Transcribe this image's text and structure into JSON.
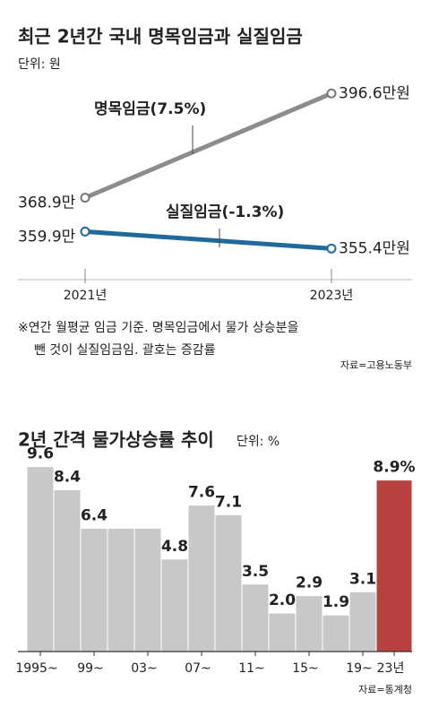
{
  "chart_data": [
    {
      "type": "line",
      "title": "최근 2년간 국내 명목임금과 실질임금",
      "subtitle": "단위: 원",
      "categories": [
        "2021년",
        "2023년"
      ],
      "series": [
        {
          "name": "명목임금(7.5%)",
          "color": "#8c8c8c",
          "values": [
            368.9,
            396.6
          ],
          "value_labels": [
            "368.9만",
            "396.6만원"
          ]
        },
        {
          "name": "실질임금(-1.3%)",
          "color": "#1f6a9a",
          "values": [
            359.9,
            355.4
          ],
          "value_labels": [
            "359.9만",
            "355.4만원"
          ]
        }
      ],
      "ylim": [
        350,
        400
      ],
      "note": [
        "※연간 월평균 임금 기준. 명목임금에서 물가 상승분을",
        "뺀 것이 실질임금임. 괄호는 증감률"
      ],
      "source": "자료=고용노동부"
    },
    {
      "type": "bar",
      "title": "2년 간격 물가상승률 추이",
      "subtitle": "단위: %",
      "categories": [
        "1995~",
        null,
        "99~",
        null,
        "03~",
        null,
        "07~",
        null,
        "11~",
        null,
        "15~",
        null,
        "19~",
        "23년"
      ],
      "values": [
        9.6,
        8.4,
        6.4,
        6.4,
        6.4,
        4.8,
        7.6,
        7.1,
        3.5,
        2.0,
        2.9,
        1.9,
        3.1,
        8.9
      ],
      "value_labels": [
        "9.6",
        "8.4",
        "6.4",
        null,
        null,
        "4.8",
        "7.6",
        "7.1",
        "3.5",
        "2.0",
        "2.9",
        "1.9",
        "3.1",
        "8.9%"
      ],
      "colors": [
        "#c8c8c8",
        "#c8c8c8",
        "#c8c8c8",
        "#c8c8c8",
        "#c8c8c8",
        "#c8c8c8",
        "#c8c8c8",
        "#c8c8c8",
        "#c8c8c8",
        "#c8c8c8",
        "#c8c8c8",
        "#c8c8c8",
        "#c8c8c8",
        "#b8403f"
      ],
      "ylim": [
        0,
        10
      ],
      "source": "자료=통계청"
    }
  ]
}
